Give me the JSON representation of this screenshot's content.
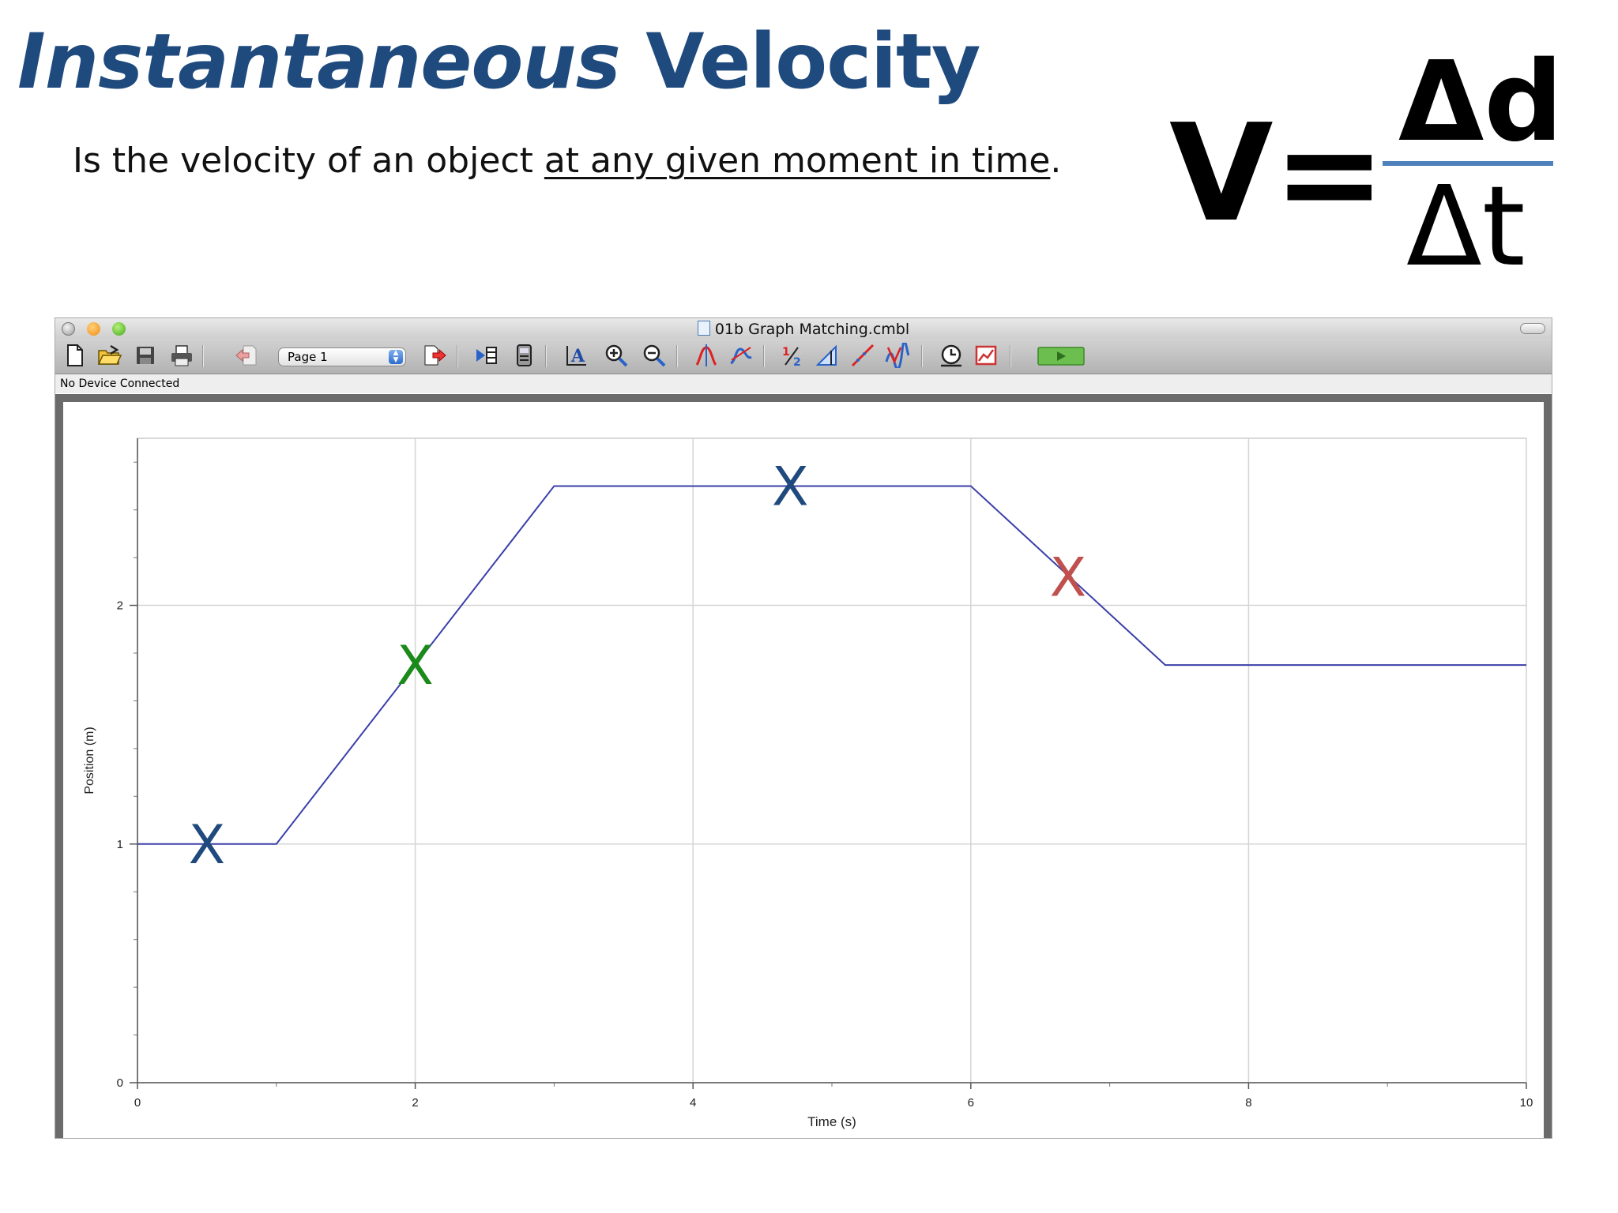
{
  "slide": {
    "title_part1": "Instantaneous",
    "title_part2": "Velocity",
    "subtitle_pre": "Is the velocity of an object ",
    "subtitle_underlined": "at any given moment in time",
    "subtitle_post": ".",
    "formula": {
      "lhs": "V=",
      "numerator": "Δd",
      "denominator": "Δt"
    }
  },
  "window": {
    "title": "01b Graph Matching.cmbl",
    "status": "No Device Connected",
    "page_select": "Page 1"
  },
  "toolbar": {
    "icons": [
      "new-document-icon",
      "open-folder-icon",
      "save-icon",
      "print-icon",
      "previous-page-icon",
      "page-select",
      "next-page-icon",
      "data-browser-icon",
      "calculator-icon",
      "autoscale-icon",
      "zoom-in-icon",
      "zoom-out-icon",
      "examine-icon",
      "tangent-icon",
      "integral-icon",
      "stats-icon",
      "linear-fit-icon",
      "curve-fit-icon",
      "data-collection-icon",
      "graph-options-icon",
      "collect-button"
    ]
  },
  "chart_data": {
    "type": "line",
    "xlabel": "Time (s)",
    "ylabel": "Position (m)",
    "xlim": [
      0,
      10
    ],
    "ylim": [
      0,
      2.7
    ],
    "x_ticks": [
      0,
      2,
      4,
      6,
      8,
      10
    ],
    "y_ticks": [
      0,
      1,
      2
    ],
    "x_tick_labels": [
      "0",
      "2",
      "4",
      "6",
      "8",
      "10"
    ],
    "y_tick_labels": [
      "0",
      "1",
      "2"
    ],
    "grid": true,
    "series": [
      {
        "x": [
          0,
          1,
          3,
          6,
          7.4,
          10
        ],
        "y": [
          1,
          1,
          2.5,
          2.5,
          1.75,
          1.75
        ],
        "color": "#3b3fa8"
      }
    ],
    "markers": [
      {
        "label": "X",
        "x": 0.5,
        "y": 1.0,
        "color": "#1f4a7e"
      },
      {
        "label": "X",
        "x": 2.0,
        "y": 1.75,
        "color": "#1a8a1a"
      },
      {
        "label": "X",
        "x": 4.7,
        "y": 2.5,
        "color": "#1f4a7e"
      },
      {
        "label": "X",
        "x": 6.7,
        "y": 2.12,
        "color": "#c0504d"
      }
    ]
  }
}
